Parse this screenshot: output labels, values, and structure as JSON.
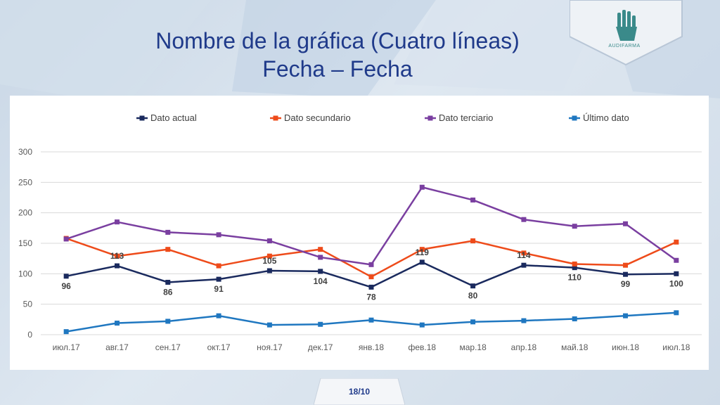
{
  "title_line1": "Nombre de la gráfica (Cuatro líneas)",
  "title_line2": "Fecha – Fecha",
  "logo_text": "AUDIFARMA",
  "page_number": "18/10",
  "colors": {
    "title": "#1f3a8a",
    "dato_actual": "#1a2a5e",
    "dato_secundario": "#ee4b1a",
    "dato_terciario": "#7a3fa0",
    "ultimo_dato": "#1f77c0",
    "logo": "#3a8a8a"
  },
  "chart_data": {
    "type": "line",
    "categories": [
      "июл.17",
      "авг.17",
      "сен.17",
      "окт.17",
      "ноя.17",
      "дек.17",
      "янв.18",
      "фев.18",
      "мар.18",
      "апр.18",
      "май.18",
      "июн.18",
      "июл.18"
    ],
    "ylim": [
      0,
      300
    ],
    "yticks": [
      0,
      50,
      100,
      150,
      200,
      250,
      300
    ],
    "grid": true,
    "legend_position": "top",
    "series": [
      {
        "name": "Dato actual",
        "color": "#1a2a5e",
        "values": [
          96,
          113,
          86,
          91,
          105,
          104,
          78,
          119,
          80,
          114,
          110,
          99,
          100
        ],
        "data_labels": [
          "96",
          "113",
          "86",
          "91",
          "105",
          "104",
          "78",
          "119",
          "80",
          "114",
          "110",
          "99",
          "100"
        ]
      },
      {
        "name": "Dato secundario",
        "color": "#ee4b1a",
        "values": [
          158,
          129,
          140,
          113,
          129,
          140,
          95,
          140,
          154,
          134,
          116,
          114,
          152
        ]
      },
      {
        "name": "Dato terciario",
        "color": "#7a3fa0",
        "values": [
          157,
          185,
          168,
          164,
          154,
          127,
          115,
          242,
          221,
          189,
          178,
          182,
          122
        ]
      },
      {
        "name": "Último dato",
        "color": "#1f77c0",
        "values": [
          5,
          19,
          22,
          31,
          16,
          17,
          24,
          16,
          21,
          23,
          26,
          31,
          36
        ]
      }
    ]
  }
}
